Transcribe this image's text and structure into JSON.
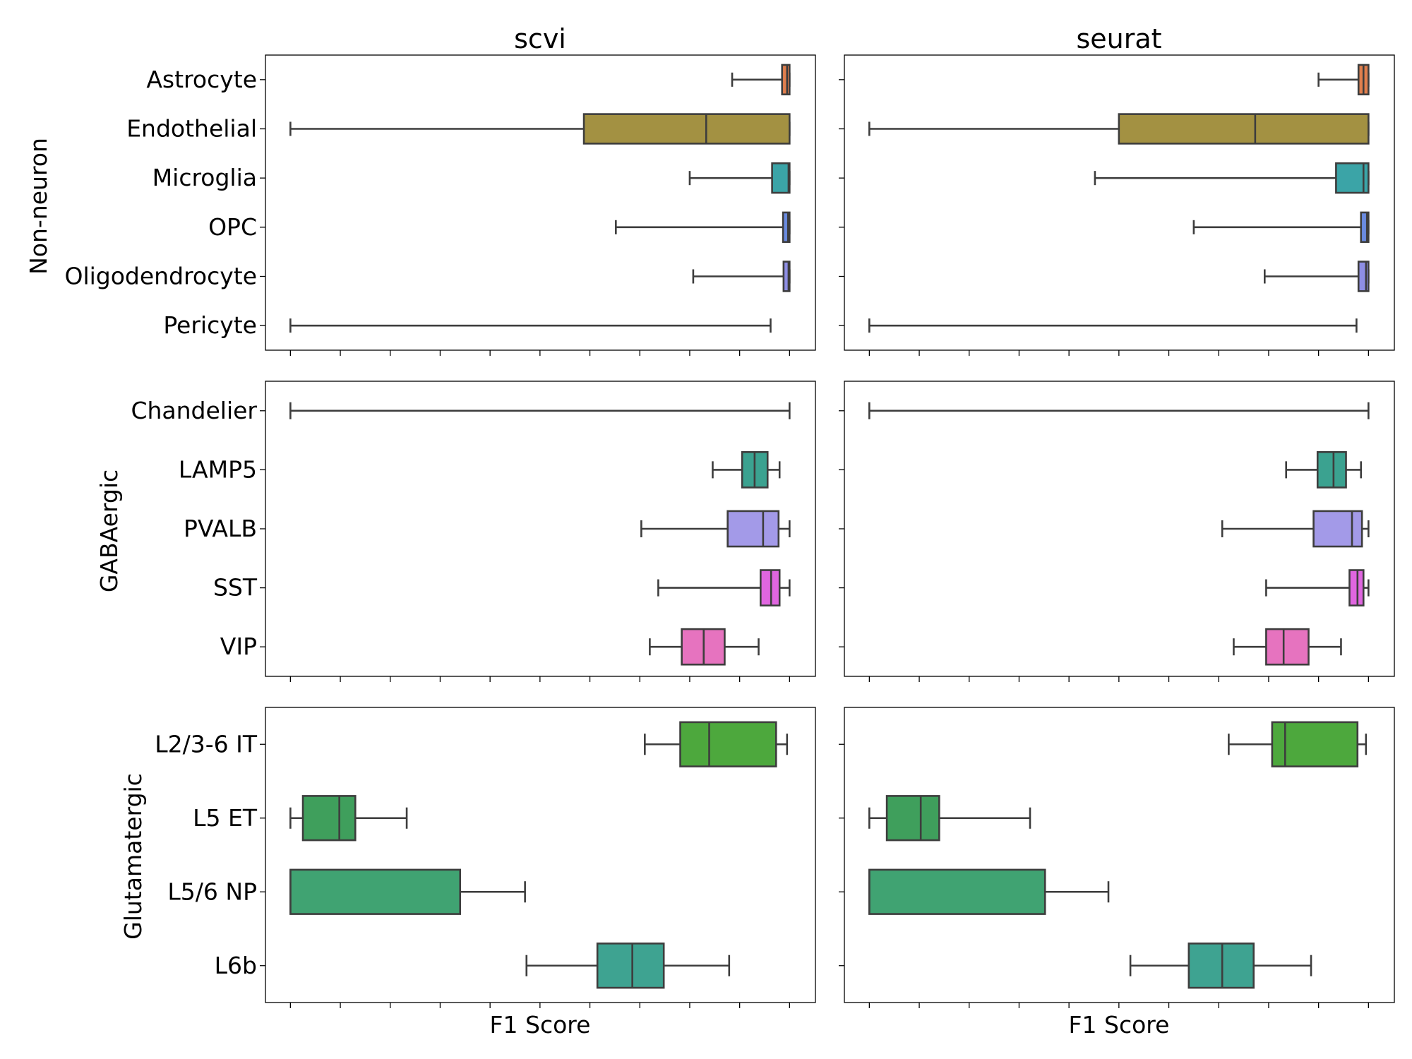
{
  "chart_data": {
    "type": "box",
    "columns": [
      "scvi",
      "seurat"
    ],
    "xlabel": "F1 Score",
    "xlim": [
      -0.05,
      1.05
    ],
    "x_tick_count": 11,
    "groups": [
      {
        "name": "Non-neuron",
        "categories": [
          {
            "label": "Astrocyte",
            "color": "#e07f4e",
            "scvi": {
              "min": 0.885,
              "q1": 0.985,
              "median": 0.995,
              "q3": 1.0,
              "max": 1.0
            },
            "seurat": {
              "min": 0.9,
              "q1": 0.98,
              "median": 0.99,
              "q3": 1.0,
              "max": 1.0
            }
          },
          {
            "label": "Endothelial",
            "color": "#a39142",
            "scvi": {
              "min": 0.0,
              "q1": 0.588,
              "median": 0.833,
              "q3": 1.0,
              "max": 1.0
            },
            "seurat": {
              "min": 0.0,
              "q1": 0.5,
              "median": 0.773,
              "q3": 1.0,
              "max": 1.0
            }
          },
          {
            "label": "Microglia",
            "color": "#3ba4a7",
            "scvi": {
              "min": 0.8,
              "q1": 0.965,
              "median": 0.998,
              "q3": 1.0,
              "max": 1.0
            },
            "seurat": {
              "min": 0.452,
              "q1": 0.935,
              "median": 0.99,
              "q3": 1.0,
              "max": 1.0
            }
          },
          {
            "label": "OPC",
            "color": "#6a8be0",
            "scvi": {
              "min": 0.652,
              "q1": 0.987,
              "median": 0.997,
              "q3": 1.0,
              "max": 1.0
            },
            "seurat": {
              "min": 0.65,
              "q1": 0.985,
              "median": 0.997,
              "q3": 1.0,
              "max": 1.0
            }
          },
          {
            "label": "Oligodendrocyte",
            "color": "#8e8ee4",
            "scvi": {
              "min": 0.807,
              "q1": 0.988,
              "median": 0.998,
              "q3": 1.0,
              "max": 1.0
            },
            "seurat": {
              "min": 0.792,
              "q1": 0.98,
              "median": 0.995,
              "q3": 1.0,
              "max": 1.0
            }
          },
          {
            "label": "Pericyte",
            "color": "#8e8ee4",
            "scvi": {
              "min": 0.0,
              "q1": 0.0,
              "median": 0.0,
              "q3": 0.0,
              "max": 0.962
            },
            "seurat": {
              "min": 0.0,
              "q1": 0.0,
              "median": 0.0,
              "q3": 0.0,
              "max": 0.976
            }
          }
        ]
      },
      {
        "name": "GABAergic",
        "categories": [
          {
            "label": "Chandelier",
            "color": "#3ba4a7",
            "scvi": {
              "min": 0.0,
              "q1": 0.0,
              "median": 0.0,
              "q3": 0.0,
              "max": 1.0
            },
            "seurat": {
              "min": 0.0,
              "q1": 0.0,
              "median": 0.0,
              "q3": 0.0,
              "max": 1.0
            }
          },
          {
            "label": "LAMP5",
            "color": "#3ba290",
            "scvi": {
              "min": 0.846,
              "q1": 0.905,
              "median": 0.93,
              "q3": 0.956,
              "max": 0.98
            },
            "seurat": {
              "min": 0.835,
              "q1": 0.898,
              "median": 0.93,
              "q3": 0.955,
              "max": 0.985
            }
          },
          {
            "label": "PVALB",
            "color": "#a39ae8",
            "scvi": {
              "min": 0.703,
              "q1": 0.876,
              "median": 0.947,
              "q3": 0.978,
              "max": 1.0
            },
            "seurat": {
              "min": 0.707,
              "q1": 0.89,
              "median": 0.967,
              "q3": 0.987,
              "max": 1.0
            }
          },
          {
            "label": "SST",
            "color": "#e066e0",
            "scvi": {
              "min": 0.737,
              "q1": 0.942,
              "median": 0.963,
              "q3": 0.98,
              "max": 1.0
            },
            "seurat": {
              "min": 0.795,
              "q1": 0.962,
              "median": 0.978,
              "q3": 0.99,
              "max": 1.0
            }
          },
          {
            "label": "VIP",
            "color": "#e673bf",
            "scvi": {
              "min": 0.72,
              "q1": 0.784,
              "median": 0.828,
              "q3": 0.87,
              "max": 0.938
            },
            "seurat": {
              "min": 0.73,
              "q1": 0.795,
              "median": 0.83,
              "q3": 0.88,
              "max": 0.945
            }
          }
        ]
      },
      {
        "name": "Glutamatergic",
        "categories": [
          {
            "label": "L2/3-6 IT",
            "color": "#4da83d",
            "scvi": {
              "min": 0.71,
              "q1": 0.781,
              "median": 0.839,
              "q3": 0.973,
              "max": 0.995
            },
            "seurat": {
              "min": 0.72,
              "q1": 0.807,
              "median": 0.833,
              "q3": 0.978,
              "max": 0.995
            }
          },
          {
            "label": "L5 ET",
            "color": "#3f9f5c",
            "scvi": {
              "min": 0.0,
              "q1": 0.025,
              "median": 0.098,
              "q3": 0.13,
              "max": 0.233
            },
            "seurat": {
              "min": 0.0,
              "q1": 0.035,
              "median": 0.103,
              "q3": 0.14,
              "max": 0.322
            }
          },
          {
            "label": "L5/6 NP",
            "color": "#40a372",
            "scvi": {
              "min": 0.0,
              "q1": 0.0,
              "median": 0.0,
              "q3": 0.34,
              "max": 0.47
            },
            "seurat": {
              "min": 0.0,
              "q1": 0.0,
              "median": 0.0,
              "q3": 0.352,
              "max": 0.479
            }
          },
          {
            "label": "L6b",
            "color": "#3ea391",
            "scvi": {
              "min": 0.473,
              "q1": 0.615,
              "median": 0.685,
              "q3": 0.748,
              "max": 0.879
            },
            "seurat": {
              "min": 0.523,
              "q1": 0.64,
              "median": 0.707,
              "q3": 0.77,
              "max": 0.885
            }
          }
        ]
      }
    ]
  }
}
